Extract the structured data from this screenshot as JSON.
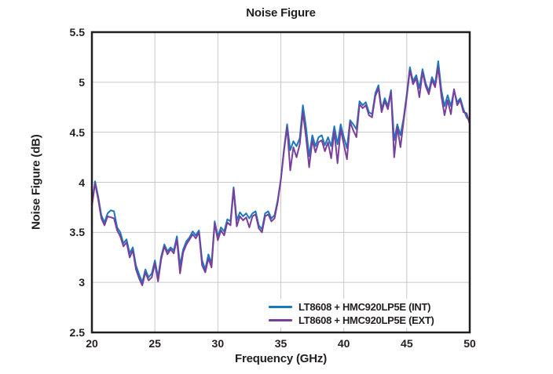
{
  "title": "Noise Figure",
  "axes": {
    "x": {
      "label": "Frequency (GHz)",
      "min": 20,
      "max": 50,
      "ticks": [
        20,
        25,
        30,
        35,
        40,
        45,
        50
      ]
    },
    "y": {
      "label": "Noise Figure (dB)",
      "min": 2.5,
      "max": 5.5,
      "ticks": [
        2.5,
        3,
        3.5,
        4,
        4.5,
        5,
        5.5
      ],
      "tick_labels": [
        "2.5",
        "3",
        "3.5",
        "4",
        "4.5",
        "5",
        "5.5"
      ]
    }
  },
  "colors": {
    "series_int": "#1B78BE",
    "series_ext": "#7A3F9B",
    "grid": "#C8C8C8",
    "border": "#231F20",
    "text": "#231F20",
    "background": "#FFFFFF"
  },
  "chart_data": {
    "type": "line",
    "title": "Noise Figure",
    "xlabel": "Frequency (GHz)",
    "ylabel": "Noise Figure (dB)",
    "xlim": [
      20,
      50
    ],
    "ylim": [
      2.5,
      5.5
    ],
    "grid": true,
    "legend_position": "lower right inside",
    "x": [
      20,
      20.25,
      20.5,
      20.75,
      21,
      21.25,
      21.5,
      21.75,
      22,
      22.25,
      22.5,
      22.75,
      23,
      23.25,
      23.5,
      23.75,
      24,
      24.25,
      24.5,
      24.75,
      25,
      25.25,
      25.5,
      25.75,
      26,
      26.25,
      26.5,
      26.75,
      27,
      27.25,
      27.5,
      27.75,
      28,
      28.25,
      28.5,
      28.75,
      29,
      29.25,
      29.5,
      29.75,
      30,
      30.25,
      30.5,
      30.75,
      31,
      31.25,
      31.5,
      31.75,
      32,
      32.25,
      32.5,
      32.75,
      33,
      33.25,
      33.5,
      33.75,
      34,
      34.25,
      34.5,
      34.75,
      35,
      35.25,
      35.5,
      35.75,
      36,
      36.25,
      36.5,
      36.75,
      37,
      37.25,
      37.5,
      37.75,
      38,
      38.25,
      38.5,
      38.75,
      39,
      39.25,
      39.5,
      39.75,
      40,
      40.25,
      40.5,
      40.75,
      41,
      41.25,
      41.5,
      41.75,
      42,
      42.25,
      42.5,
      42.75,
      43,
      43.25,
      43.5,
      43.75,
      44,
      44.25,
      44.5,
      44.75,
      45,
      45.25,
      45.5,
      45.75,
      46,
      46.25,
      46.5,
      46.75,
      47,
      47.25,
      47.5,
      47.75,
      48,
      48.25,
      48.5,
      48.75,
      49,
      49.25,
      49.5,
      49.75,
      50
    ],
    "series": [
      {
        "name": "LT8608 + HMC920LP5E (INT)",
        "color": "#1B78BE",
        "values": [
          3.78,
          4.01,
          3.86,
          3.67,
          3.6,
          3.69,
          3.72,
          3.71,
          3.55,
          3.5,
          3.39,
          3.43,
          3.29,
          3.35,
          3.17,
          3.08,
          3.0,
          3.13,
          3.05,
          3.09,
          3.22,
          3.05,
          3.26,
          3.38,
          3.31,
          3.35,
          3.32,
          3.46,
          3.17,
          3.33,
          3.41,
          3.45,
          3.51,
          3.47,
          3.52,
          3.22,
          3.13,
          3.28,
          3.19,
          3.61,
          3.46,
          3.55,
          3.51,
          3.63,
          3.61,
          3.95,
          3.62,
          3.7,
          3.66,
          3.69,
          3.64,
          3.69,
          3.71,
          3.57,
          3.53,
          3.69,
          3.71,
          3.64,
          3.67,
          3.82,
          4.03,
          4.33,
          4.58,
          4.32,
          4.41,
          4.36,
          4.44,
          4.77,
          4.55,
          4.26,
          4.47,
          4.36,
          4.45,
          4.47,
          4.37,
          4.45,
          4.36,
          4.56,
          4.38,
          4.58,
          4.45,
          4.34,
          4.62,
          4.58,
          4.53,
          4.81,
          4.77,
          4.8,
          4.7,
          4.68,
          4.89,
          4.97,
          4.73,
          4.84,
          4.76,
          4.92,
          4.42,
          4.58,
          4.47,
          4.64,
          4.88,
          5.15,
          5.01,
          5.07,
          4.94,
          5.13,
          4.99,
          4.91,
          5.05,
          4.98,
          5.21,
          4.92,
          4.76,
          4.87,
          4.76,
          4.92,
          4.8,
          4.84,
          4.73,
          4.65,
          4.61
        ]
      },
      {
        "name": "LT8608 + HMC920LP5E (EXT)",
        "color": "#7A3F9B",
        "values": [
          3.76,
          3.99,
          3.83,
          3.64,
          3.57,
          3.66,
          3.65,
          3.64,
          3.52,
          3.46,
          3.36,
          3.4,
          3.25,
          3.32,
          3.13,
          3.04,
          2.97,
          3.1,
          3.02,
          3.05,
          3.19,
          3.01,
          3.23,
          3.36,
          3.28,
          3.33,
          3.29,
          3.43,
          3.09,
          3.3,
          3.38,
          3.43,
          3.48,
          3.44,
          3.5,
          3.17,
          3.1,
          3.24,
          3.15,
          3.59,
          3.42,
          3.52,
          3.47,
          3.6,
          3.57,
          3.93,
          3.56,
          3.66,
          3.62,
          3.65,
          3.55,
          3.66,
          3.68,
          3.54,
          3.5,
          3.66,
          3.68,
          3.61,
          3.64,
          3.8,
          4.02,
          4.31,
          4.55,
          4.12,
          4.35,
          4.25,
          4.38,
          4.7,
          4.45,
          4.15,
          4.42,
          4.3,
          4.4,
          4.42,
          4.31,
          4.4,
          4.24,
          4.51,
          4.19,
          4.53,
          4.38,
          4.23,
          4.6,
          4.52,
          4.45,
          4.78,
          4.74,
          4.77,
          4.67,
          4.65,
          4.86,
          4.94,
          4.7,
          4.81,
          4.73,
          4.9,
          4.25,
          4.55,
          4.35,
          4.61,
          4.85,
          5.12,
          4.98,
          5.04,
          4.85,
          5.1,
          4.96,
          4.88,
          5.02,
          4.95,
          5.15,
          4.86,
          4.67,
          4.82,
          4.68,
          4.93,
          4.77,
          4.82,
          4.7,
          4.69,
          4.58
        ]
      }
    ]
  }
}
